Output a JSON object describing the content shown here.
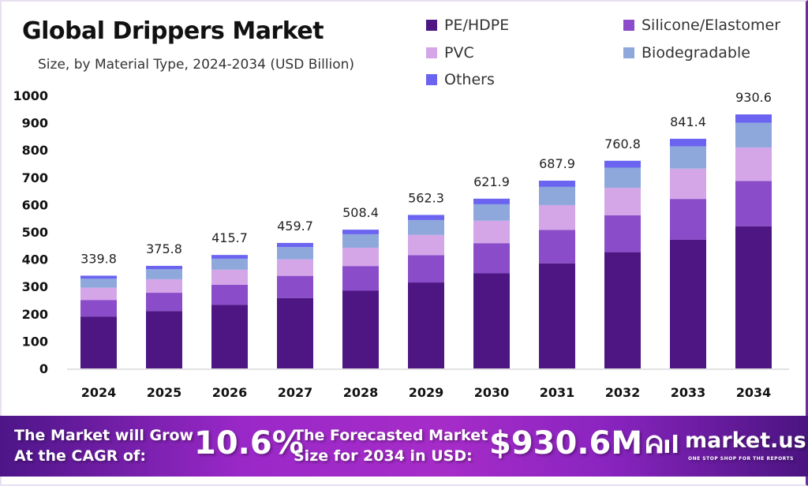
{
  "chart_data": {
    "type": "bar",
    "stacked": true,
    "title": "Global Drippers Market",
    "subtitle": "Size, by Material Type, 2024-2034 (USD Billion)",
    "xlabel": "",
    "ylabel": "",
    "ylim": [
      0,
      1000
    ],
    "yticks": [
      0,
      100,
      200,
      300,
      400,
      500,
      600,
      700,
      800,
      900,
      1000
    ],
    "grid": false,
    "legend_position": "top-right",
    "categories": [
      "2024",
      "2025",
      "2026",
      "2027",
      "2028",
      "2029",
      "2030",
      "2031",
      "2032",
      "2033",
      "2034"
    ],
    "totals": [
      "339.8",
      "375.8",
      "415.7",
      "459.7",
      "508.4",
      "562.3",
      "621.9",
      "687.9",
      "760.8",
      "841.4",
      "930.6"
    ],
    "series": [
      {
        "name": "PE/HDPE",
        "color": "#4e1683",
        "values": [
          190.3,
          210.4,
          232.8,
          257.4,
          284.7,
          314.9,
          348.3,
          385.2,
          426.0,
          471.2,
          521.1
        ]
      },
      {
        "name": "Silicone/Elastomer",
        "color": "#8a4cc8",
        "values": [
          60.5,
          66.9,
          74.0,
          81.8,
          90.5,
          100.1,
          110.7,
          122.4,
          135.4,
          149.8,
          165.6
        ]
      },
      {
        "name": "PVC",
        "color": "#d4a6e8",
        "values": [
          44.9,
          49.6,
          54.9,
          60.7,
          67.1,
          74.2,
          82.1,
          90.8,
          100.4,
          111.1,
          122.8
        ]
      },
      {
        "name": "Biodegradable",
        "color": "#8ea8dc",
        "values": [
          33.0,
          36.5,
          40.3,
          44.6,
          49.3,
          54.5,
          60.3,
          66.7,
          73.8,
          81.6,
          90.3
        ]
      },
      {
        "name": "Others",
        "color": "#6a64f0",
        "values": [
          11.1,
          12.4,
          13.7,
          15.2,
          16.8,
          18.6,
          20.5,
          22.8,
          25.2,
          27.7,
          30.8
        ]
      }
    ]
  },
  "banner": {
    "cagr_label_1": "The Market will Grow",
    "cagr_label_2": "At the CAGR of:",
    "cagr_value": "10.6%",
    "forecast_label_1": "The Forecasted Market",
    "forecast_label_2": "Size for 2034 in USD:",
    "forecast_value": "$930.6M",
    "brand": "market.us",
    "brand_tagline": "ONE STOP SHOP FOR THE REPORTS"
  }
}
